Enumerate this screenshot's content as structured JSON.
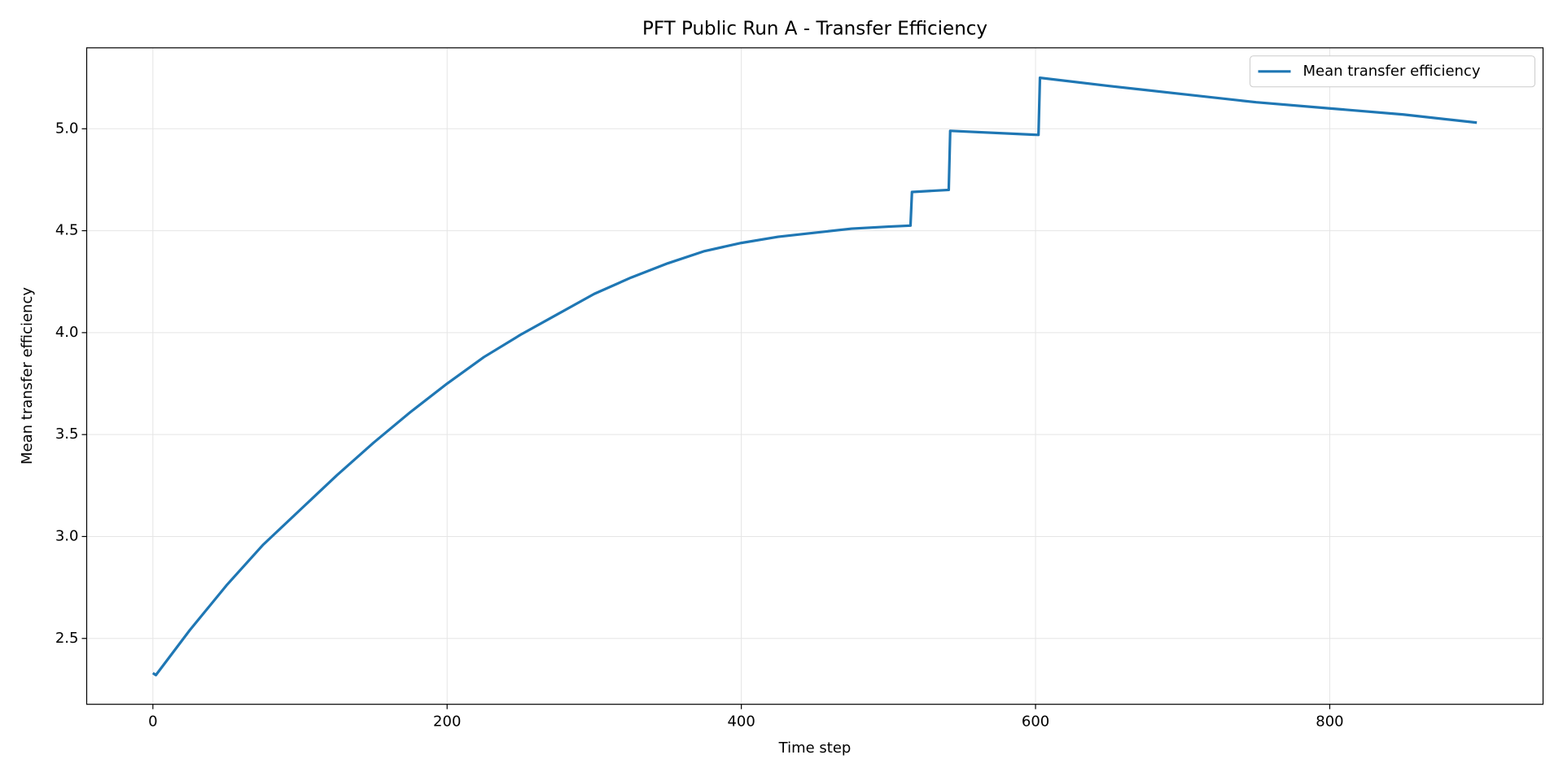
{
  "chart_data": {
    "type": "line",
    "title": "PFT Public Run A - Transfer Efficiency",
    "xlabel": "Time step",
    "ylabel": "Mean transfer efficiency",
    "x": [
      0,
      2,
      25,
      50,
      75,
      100,
      125,
      150,
      175,
      200,
      225,
      250,
      275,
      300,
      325,
      350,
      375,
      400,
      425,
      450,
      475,
      500,
      515,
      516,
      541,
      542,
      602,
      603,
      650,
      700,
      750,
      800,
      850,
      900
    ],
    "series": [
      {
        "name": "Mean transfer efficiency",
        "color": "#1f77b4",
        "values": [
          2.33,
          2.32,
          2.54,
          2.76,
          2.96,
          3.13,
          3.3,
          3.46,
          3.61,
          3.75,
          3.88,
          3.99,
          4.09,
          4.19,
          4.27,
          4.34,
          4.4,
          4.44,
          4.47,
          4.49,
          4.51,
          4.52,
          4.525,
          4.69,
          4.7,
          4.99,
          4.97,
          5.25,
          5.21,
          5.17,
          5.13,
          5.1,
          5.07,
          5.03
        ]
      }
    ],
    "xlim": [
      -45,
      945
    ],
    "ylim": [
      2.177,
      5.397
    ],
    "xticks": [
      0,
      200,
      400,
      600,
      800
    ],
    "yticks": [
      2.5,
      {
        "value": 3,
        "label": "3.0"
      },
      3.5,
      {
        "value": 4,
        "label": "4.0"
      },
      4.5,
      {
        "value": 5,
        "label": "5.0"
      }
    ],
    "grid": true,
    "legend": "upper right"
  }
}
